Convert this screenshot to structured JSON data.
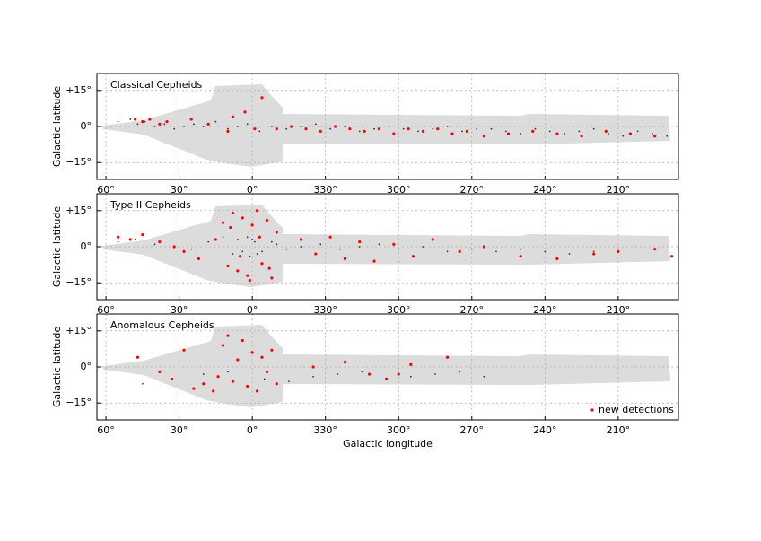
{
  "chart_data": [
    {
      "type": "scatter",
      "title": "Classical Cepheids",
      "ylabel": "Galactic latitude",
      "xlim": [
        63.7,
        -174.7
      ],
      "ylim": [
        -22,
        22
      ],
      "grid": true,
      "xticks": [
        {
          "value": 60,
          "label": "60°"
        },
        {
          "value": 30,
          "label": "30°"
        },
        {
          "value": 0,
          "label": "0°"
        },
        {
          "value": -30,
          "label": "330°"
        },
        {
          "value": -60,
          "label": "300°"
        },
        {
          "value": -90,
          "label": "270°"
        },
        {
          "value": -120,
          "label": "240°"
        },
        {
          "value": -150,
          "label": "210°"
        }
      ],
      "yticks": [
        {
          "value": 15,
          "label": "+15°"
        },
        {
          "value": 0,
          "label": "0°"
        },
        {
          "value": -15,
          "label": "−15°"
        }
      ],
      "series": [
        {
          "color": "#333333",
          "x": [
            55,
            50,
            47,
            44,
            40,
            36,
            32,
            28,
            24,
            20,
            15,
            10,
            6,
            2,
            -3,
            -8,
            -14,
            -20,
            -26,
            -32,
            -38,
            -44,
            -50,
            -56,
            -62,
            -68,
            -74,
            -80,
            -86,
            -92,
            -98,
            -104,
            -110,
            -116,
            -122,
            -128,
            -134,
            -140,
            -146,
            -152,
            -158,
            -164,
            -170
          ],
          "values": [
            2,
            3,
            1,
            2,
            0,
            1,
            -1,
            0,
            1,
            0,
            2,
            -1,
            0,
            1,
            -2,
            0,
            -1,
            0,
            1,
            -1,
            0,
            -2,
            -1,
            0,
            -1,
            -2,
            -1,
            0,
            -2,
            -1,
            -1,
            -2,
            -3,
            -1,
            -2,
            -3,
            -2,
            -1,
            -3,
            -4,
            -2,
            -3,
            -4
          ]
        },
        {
          "color": "#ff0000",
          "x": [
            48,
            45,
            42,
            38,
            35,
            25,
            18,
            10,
            8,
            3,
            -1,
            -4,
            -10,
            -16,
            -22,
            -28,
            -34,
            -40,
            -46,
            -52,
            -58,
            -64,
            -70,
            -76,
            -82,
            -88,
            -95,
            -105,
            -115,
            -125,
            -135,
            -145,
            -155,
            -165
          ],
          "values": [
            3,
            2,
            3,
            1,
            2,
            3,
            1,
            -2,
            4,
            6,
            -1,
            12,
            -1,
            0,
            -1,
            -2,
            0,
            -1,
            -2,
            -1,
            -3,
            -1,
            -2,
            -1,
            -3,
            -2,
            -4,
            -3,
            -2,
            -3,
            -4,
            -2,
            -3,
            -4
          ]
        }
      ]
    },
    {
      "type": "scatter",
      "title": "Type II Cepheids",
      "ylabel": "Galactic latitude",
      "xlim": [
        63.7,
        -174.7
      ],
      "ylim": [
        -22,
        22
      ],
      "grid": true,
      "xticks": [
        {
          "value": 60,
          "label": "60°"
        },
        {
          "value": 30,
          "label": "30°"
        },
        {
          "value": 0,
          "label": "0°"
        },
        {
          "value": -30,
          "label": "330°"
        },
        {
          "value": -60,
          "label": "300°"
        },
        {
          "value": -90,
          "label": "270°"
        },
        {
          "value": -120,
          "label": "240°"
        },
        {
          "value": -150,
          "label": "210°"
        }
      ],
      "yticks": [
        {
          "value": 15,
          "label": "+15°"
        },
        {
          "value": 0,
          "label": "0°"
        },
        {
          "value": -15,
          "label": "−15°"
        }
      ],
      "series": [
        {
          "color": "#333333",
          "x": [
            55,
            48,
            40,
            32,
            25,
            18,
            12,
            8,
            6,
            4,
            2,
            1,
            0,
            -1,
            -2,
            -3,
            -4,
            -6,
            -8,
            -10,
            -14,
            -20,
            -28,
            -36,
            -44,
            -52,
            -60,
            -70,
            -80,
            -90,
            -100,
            -110,
            -120,
            -130,
            -140
          ],
          "values": [
            2,
            3,
            1,
            0,
            -1,
            2,
            4,
            -3,
            3,
            -2,
            4,
            -4,
            3,
            2,
            -3,
            4,
            -2,
            -1,
            2,
            1,
            -1,
            0,
            1,
            -1,
            0,
            1,
            -1,
            0,
            -2,
            -1,
            -2,
            -1,
            -2,
            -3,
            -2
          ]
        },
        {
          "color": "#ff0000",
          "x": [
            55,
            50,
            45,
            38,
            32,
            28,
            22,
            15,
            12,
            10,
            8,
            6,
            4,
            2,
            0,
            -2,
            -4,
            -6,
            -8,
            -10,
            5,
            -3,
            9,
            -7,
            1,
            -20,
            -26,
            -32,
            -38,
            -44,
            -50,
            -58,
            -66,
            -74,
            -85,
            -95,
            -110,
            -125,
            -140,
            -150,
            -165,
            -172
          ],
          "values": [
            4,
            3,
            5,
            2,
            0,
            -2,
            -5,
            3,
            10,
            -8,
            14,
            -10,
            12,
            -12,
            9,
            15,
            -7,
            11,
            -13,
            6,
            -4,
            4,
            8,
            -9,
            -14,
            3,
            -3,
            4,
            -5,
            2,
            -6,
            1,
            -4,
            3,
            -2,
            0,
            -4,
            -5,
            -3,
            -2,
            -1,
            -4
          ]
        }
      ]
    },
    {
      "type": "scatter",
      "title": "Anomalous Cepheids",
      "ylabel": "Galactic latitude",
      "xlabel": "Galactic longitude",
      "xlim": [
        63.7,
        -174.7
      ],
      "ylim": [
        -22,
        22
      ],
      "grid": true,
      "legend": "lower right",
      "xticks": [
        {
          "value": 60,
          "label": "60°"
        },
        {
          "value": 30,
          "label": "30°"
        },
        {
          "value": 0,
          "label": "0°"
        },
        {
          "value": -30,
          "label": "330°"
        },
        {
          "value": -60,
          "label": "300°"
        },
        {
          "value": -90,
          "label": "270°"
        },
        {
          "value": -120,
          "label": "240°"
        },
        {
          "value": -150,
          "label": "210°"
        }
      ],
      "yticks": [
        {
          "value": 15,
          "label": "+15°"
        },
        {
          "value": 0,
          "label": "0°"
        },
        {
          "value": -15,
          "label": "−15°"
        }
      ],
      "series": [
        {
          "color": "#333333",
          "x": [
            45,
            20,
            10,
            -5,
            -15,
            -25,
            -35,
            -45,
            -55,
            -65,
            -75,
            -85,
            -95
          ],
          "values": [
            -7,
            -3,
            -2,
            -5,
            -6,
            -4,
            -3,
            -2,
            -5,
            -4,
            -3,
            -2,
            -4
          ]
        },
        {
          "name": "new detections",
          "color": "#ff0000",
          "x": [
            47,
            38,
            33,
            28,
            24,
            20,
            16,
            14,
            12,
            10,
            8,
            6,
            4,
            2,
            0,
            -2,
            -4,
            -6,
            -8,
            -10,
            -25,
            -38,
            -48,
            -55,
            -60,
            -65,
            -80
          ],
          "values": [
            4,
            -2,
            -5,
            7,
            -9,
            -7,
            -10,
            -4,
            9,
            13,
            -6,
            3,
            11,
            -8,
            6,
            -10,
            4,
            -2,
            7,
            -7,
            0,
            2,
            -3,
            -5,
            -3,
            1,
            4
          ]
        }
      ]
    }
  ]
}
